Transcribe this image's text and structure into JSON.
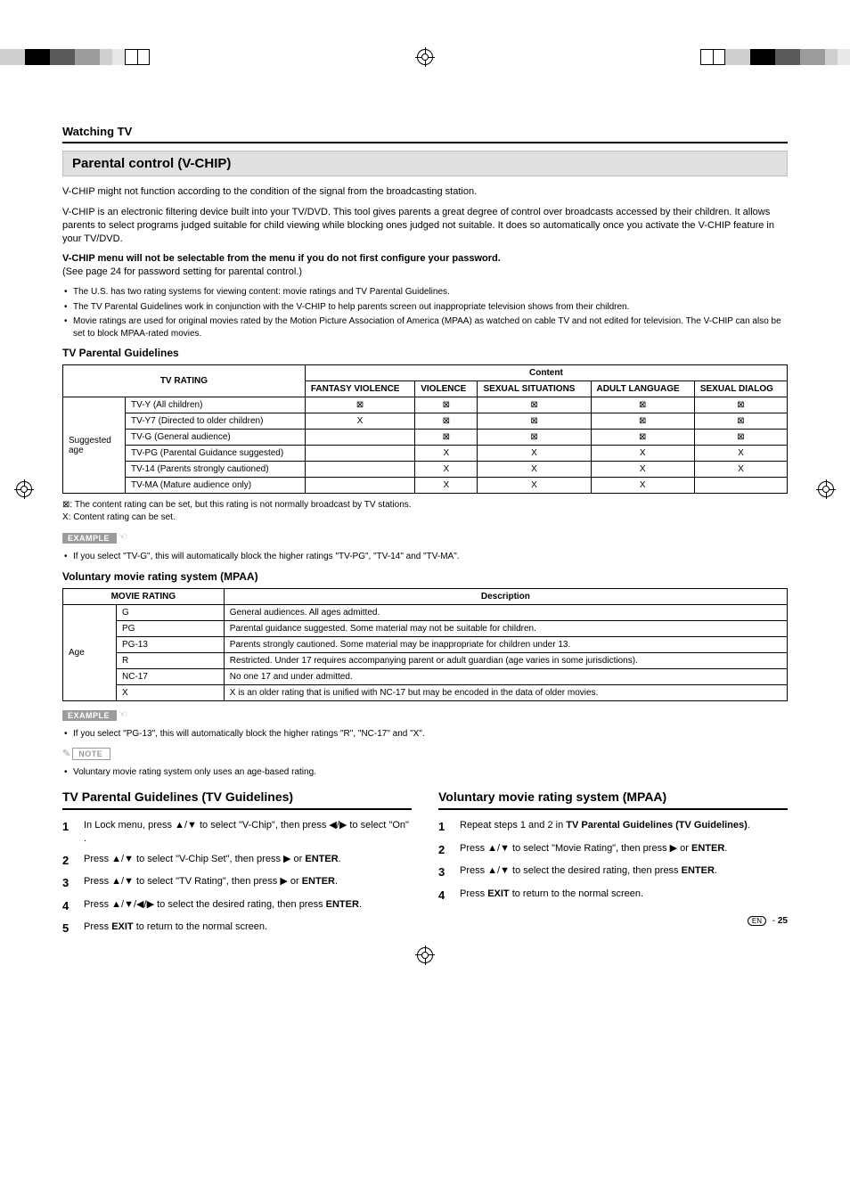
{
  "header": {
    "section_label": "Watching TV",
    "title": "Parental control (V-CHIP)"
  },
  "intro": {
    "p1": "V-CHIP might not function according to the condition of the signal from the broadcasting station.",
    "p2": "V-CHIP is an electronic filtering device built into your TV/DVD. This tool gives parents a great degree of control over broadcasts accessed by their children. It allows parents to select programs judged suitable for child viewing while blocking ones judged not suitable. It does so automatically once you activate the V-CHIP feature in your TV/DVD.",
    "p3_bold": "V-CHIP menu will not be selectable from the menu if you do not first configure your password.",
    "p3_rest": "(See page 24 for password setting for parental control.)",
    "bullets": [
      "The U.S. has two rating systems for viewing content: movie ratings and TV Parental Guidelines.",
      "The TV Parental Guidelines work in conjunction with the V-CHIP to help parents screen out inappropriate television shows from their children.",
      "Movie ratings are used for original movies rated by the Motion Picture Association of America (MPAA) as watched on cable TV and not edited for television. The V-CHIP can also be set to block MPAA-rated movies."
    ]
  },
  "tv_table": {
    "heading": "TV Parental Guidelines",
    "hdr_rating": "TV RATING",
    "hdr_content": "Content",
    "content_cols": [
      "FANTASY VIOLENCE",
      "VIOLENCE",
      "SEXUAL SITUATIONS",
      "ADULT LANGUAGE",
      "SEXUAL DIALOG"
    ],
    "row_group": "Suggested age",
    "rows": [
      {
        "label": "TV-Y (All children)",
        "cells": [
          "⊠",
          "⊠",
          "⊠",
          "⊠",
          "⊠"
        ]
      },
      {
        "label": "TV-Y7 (Directed to older children)",
        "cells": [
          "X",
          "⊠",
          "⊠",
          "⊠",
          "⊠"
        ]
      },
      {
        "label": "TV-G (General audience)",
        "cells": [
          "",
          "⊠",
          "⊠",
          "⊠",
          "⊠"
        ]
      },
      {
        "label": "TV-PG (Parental Guidance suggested)",
        "cells": [
          "",
          "X",
          "X",
          "X",
          "X"
        ]
      },
      {
        "label": "TV-14 (Parents strongly cautioned)",
        "cells": [
          "",
          "X",
          "X",
          "X",
          "X"
        ]
      },
      {
        "label": "TV-MA (Mature audience only)",
        "cells": [
          "",
          "X",
          "X",
          "X",
          ""
        ]
      }
    ],
    "legend1": "⊠:  The content rating can be set, but this rating is not normally broadcast by TV stations.",
    "legend2": "X:  Content rating can be set.",
    "example_label": "EXAMPLE",
    "example_bullet": "If you select \"TV-G\", this will automatically block the higher ratings \"TV-PG\", \"TV-14\" and \"TV-MA\"."
  },
  "mpaa_table": {
    "heading": "Voluntary movie rating system (MPAA)",
    "hdr_rating": "MOVIE RATING",
    "hdr_desc": "Description",
    "row_group": "Age",
    "rows": [
      {
        "code": "G",
        "desc": "General audiences. All ages admitted."
      },
      {
        "code": "PG",
        "desc": "Parental guidance suggested. Some material may not be suitable for children."
      },
      {
        "code": "PG-13",
        "desc": "Parents strongly cautioned. Some material may be inappropriate for children under 13."
      },
      {
        "code": "R",
        "desc": "Restricted. Under 17 requires accompanying parent or adult guardian (age varies in some jurisdictions)."
      },
      {
        "code": "NC-17",
        "desc": "No one 17 and under admitted."
      },
      {
        "code": "X",
        "desc": "X is an older rating that is unified with NC-17 but may be encoded in the data of older movies."
      }
    ],
    "example_label": "EXAMPLE",
    "example_bullet": "If you select \"PG-13\", this will automatically block the higher ratings \"R\", \"NC-17\" and \"X\".",
    "note_label": "NOTE",
    "note_bullet": "Voluntary movie rating system only uses an age-based rating."
  },
  "cols": {
    "left": {
      "title": "TV Parental Guidelines (TV Guidelines)",
      "steps": [
        "In Lock menu, press ▲/▼ to select \"V-Chip\", then press ◀/▶ to select \"On\" .",
        "Press ▲/▼ to select \"V-Chip Set\", then press ▶ or <b>ENTER</b>.",
        "Press ▲/▼ to select \"TV Rating\", then press ▶ or <b>ENTER</b>.",
        "Press ▲/▼/◀/▶ to select the desired rating, then press <b>ENTER</b>.",
        "Press <b>EXIT</b> to return to the normal screen."
      ]
    },
    "right": {
      "title": "Voluntary movie rating system (MPAA)",
      "steps": [
        "Repeat steps 1 and 2 in <b>TV Parental Guidelines (TV Guidelines)</b>.",
        "Press ▲/▼ to select \"Movie Rating\", then press ▶ or <b>ENTER</b>.",
        "Press ▲/▼ to select the desired rating, then press <b>ENTER</b>.",
        "Press <b>EXIT</b> to return to the normal screen."
      ]
    }
  },
  "footer": {
    "lang": "EN",
    "page": "25"
  },
  "colors": {
    "bar_gray_light": "#cfcfcf",
    "bar_gray_mid": "#9c9c9c",
    "bar_gray_dark": "#5a5a5a",
    "bar_black": "#000000"
  }
}
